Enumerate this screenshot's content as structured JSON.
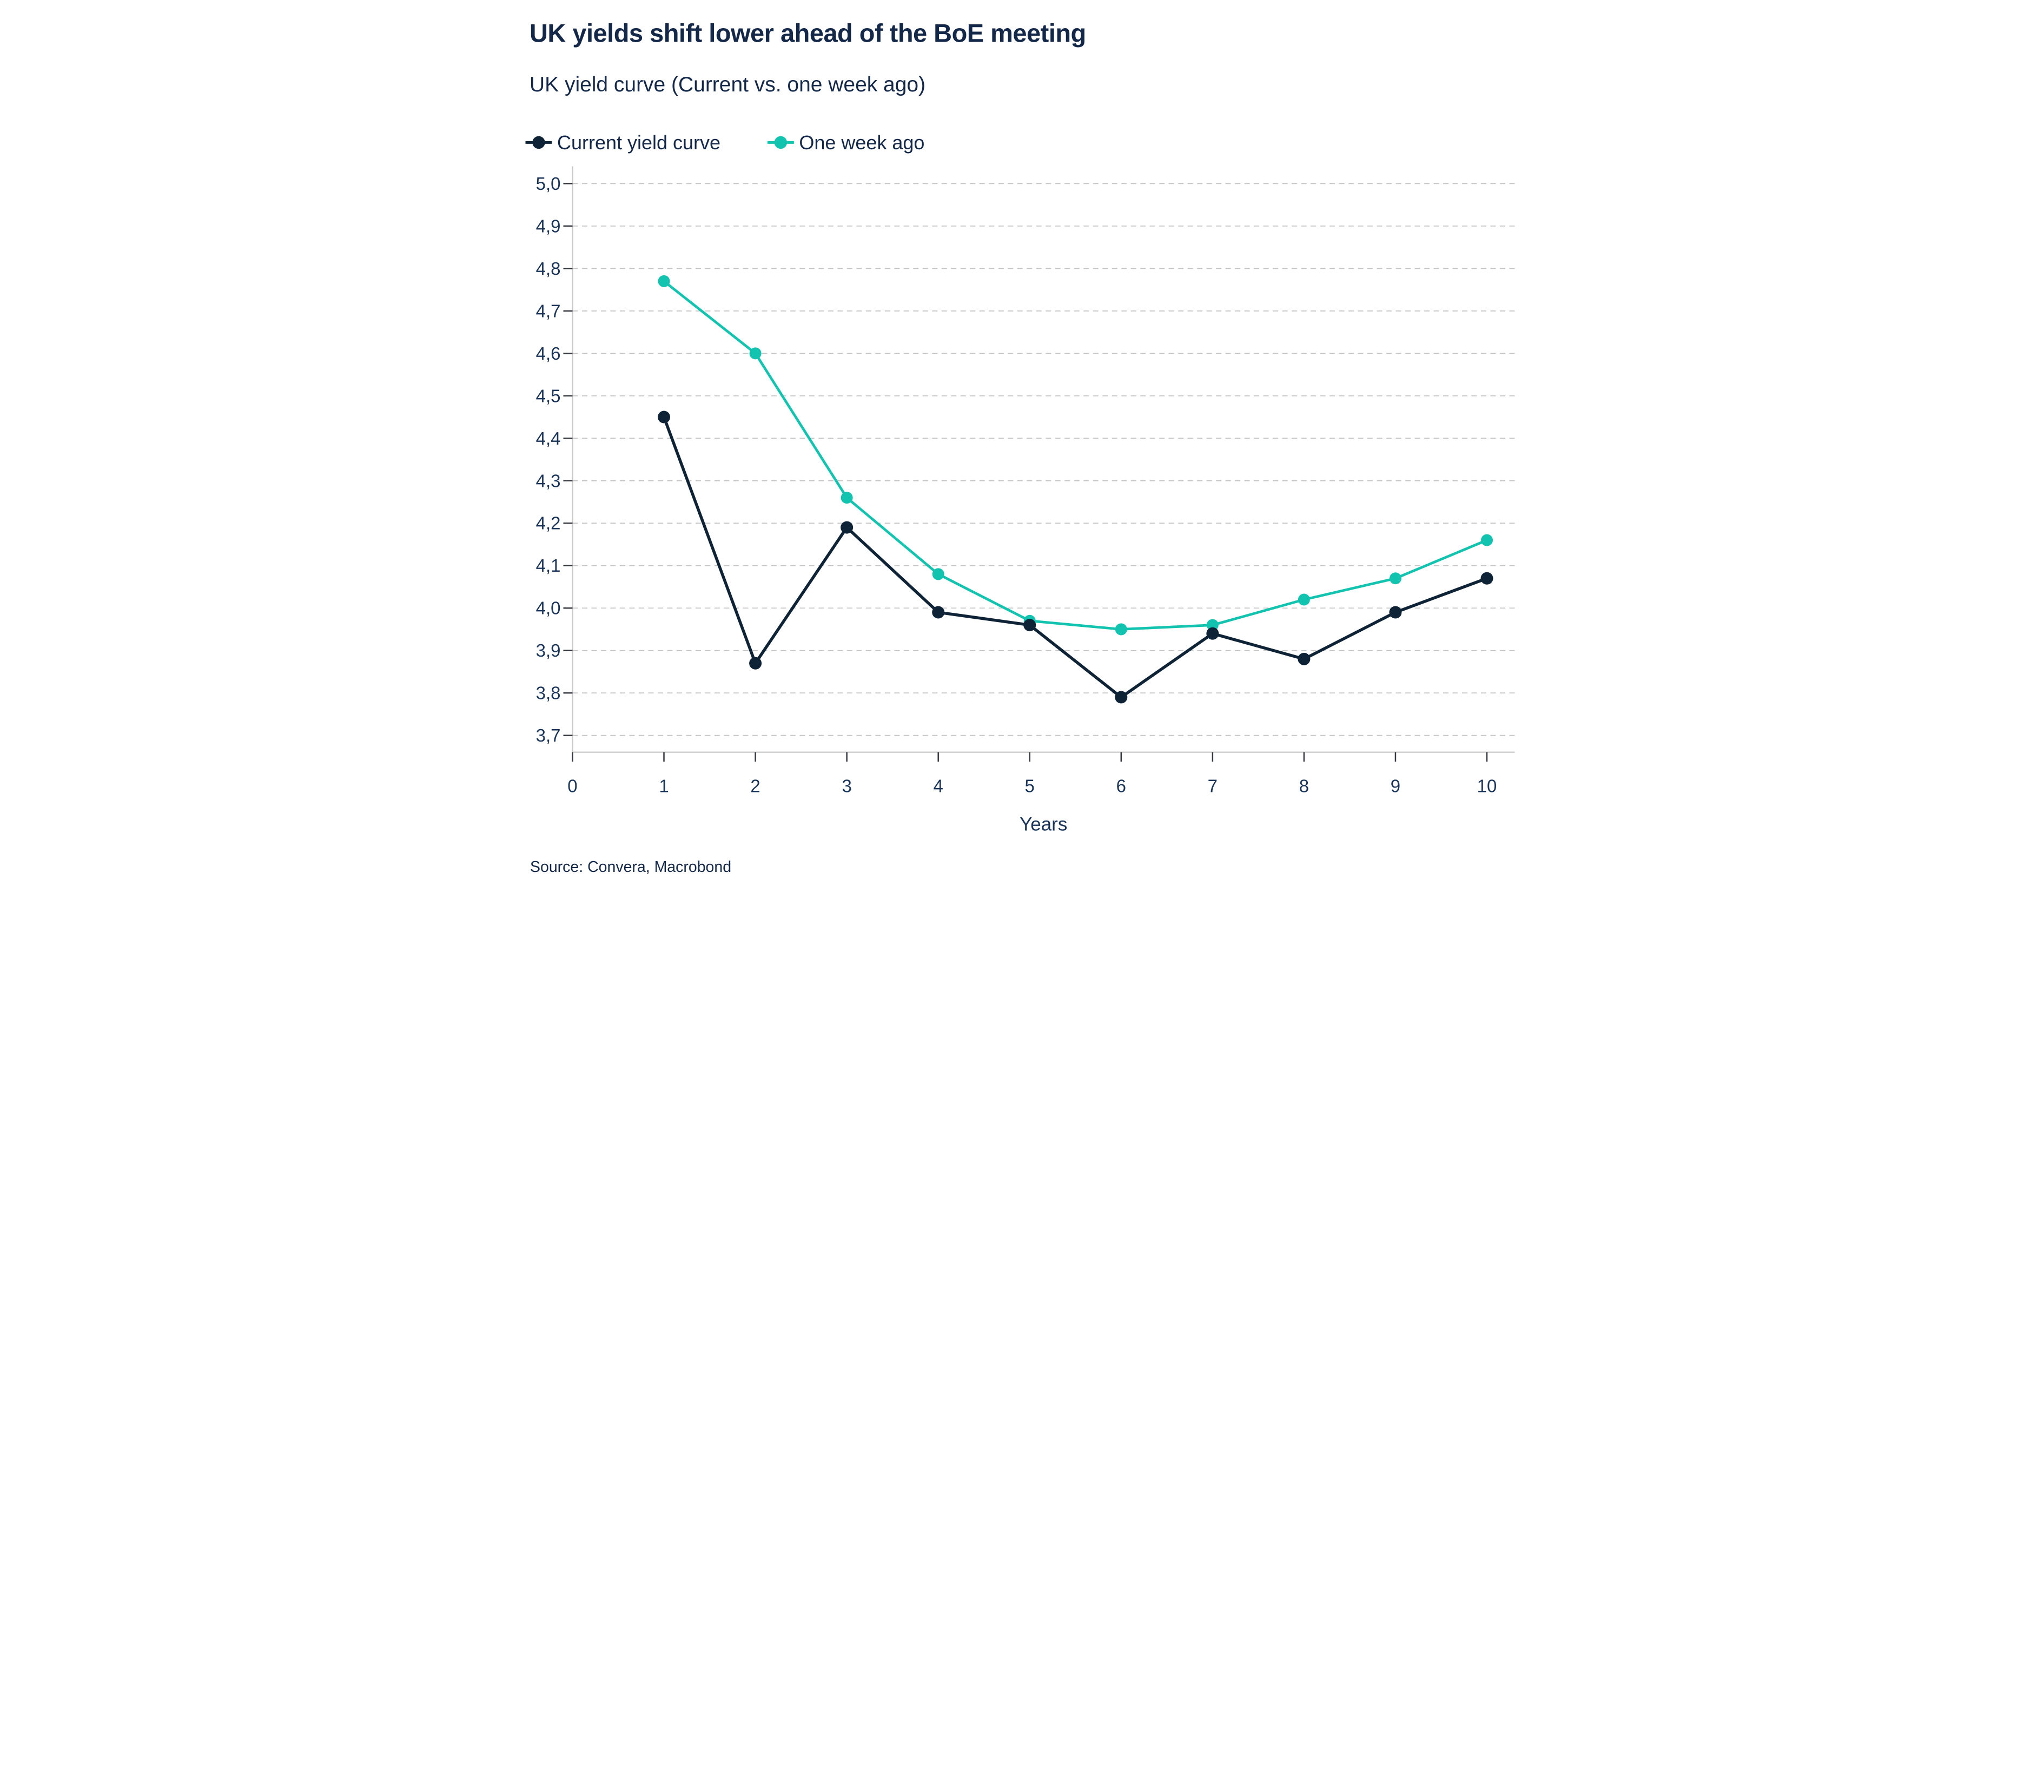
{
  "title": "UK yields shift lower ahead of the BoE meeting",
  "subtitle": "UK yield curve (Current vs. one week ago)",
  "source": "Source: Convera, Macrobond",
  "legend": [
    {
      "label": "Current yield curve",
      "color_key": "current"
    },
    {
      "label": "One week ago",
      "color_key": "week_ago"
    }
  ],
  "colors": {
    "current": "#0F2337",
    "week_ago": "#12C4AF",
    "title_text": "#14284A",
    "axis_label_text": "#1A3559",
    "grid": "#C4C4C4",
    "axis_line": "#C9C9C9",
    "tick": "#35393F",
    "background": "#FFFFFF"
  },
  "chart_data": {
    "type": "line",
    "x": [
      1,
      2,
      3,
      4,
      5,
      6,
      7,
      8,
      9,
      10
    ],
    "series": [
      {
        "name": "Current yield curve",
        "color_key": "current",
        "values": [
          4.45,
          3.87,
          4.19,
          3.99,
          3.96,
          3.79,
          3.94,
          3.88,
          3.99,
          4.07
        ]
      },
      {
        "name": "One week ago",
        "color_key": "week_ago",
        "values": [
          4.77,
          4.6,
          4.26,
          4.08,
          3.97,
          3.95,
          3.96,
          4.02,
          4.07,
          4.16
        ]
      }
    ],
    "xlabel": "Years",
    "ylabel": "",
    "x_ticks": [
      0,
      1,
      2,
      3,
      4,
      5,
      6,
      7,
      8,
      9,
      10
    ],
    "y_ticks": [
      3.7,
      3.8,
      3.9,
      4.0,
      4.1,
      4.2,
      4.3,
      4.4,
      4.5,
      4.6,
      4.7,
      4.8,
      4.9,
      5.0
    ],
    "ylim": [
      3.7,
      5.0
    ],
    "xlim": [
      0,
      10.3
    ],
    "decimal_separator": ",",
    "grid": "horizontal-dashed",
    "legend_position": "top-left"
  }
}
